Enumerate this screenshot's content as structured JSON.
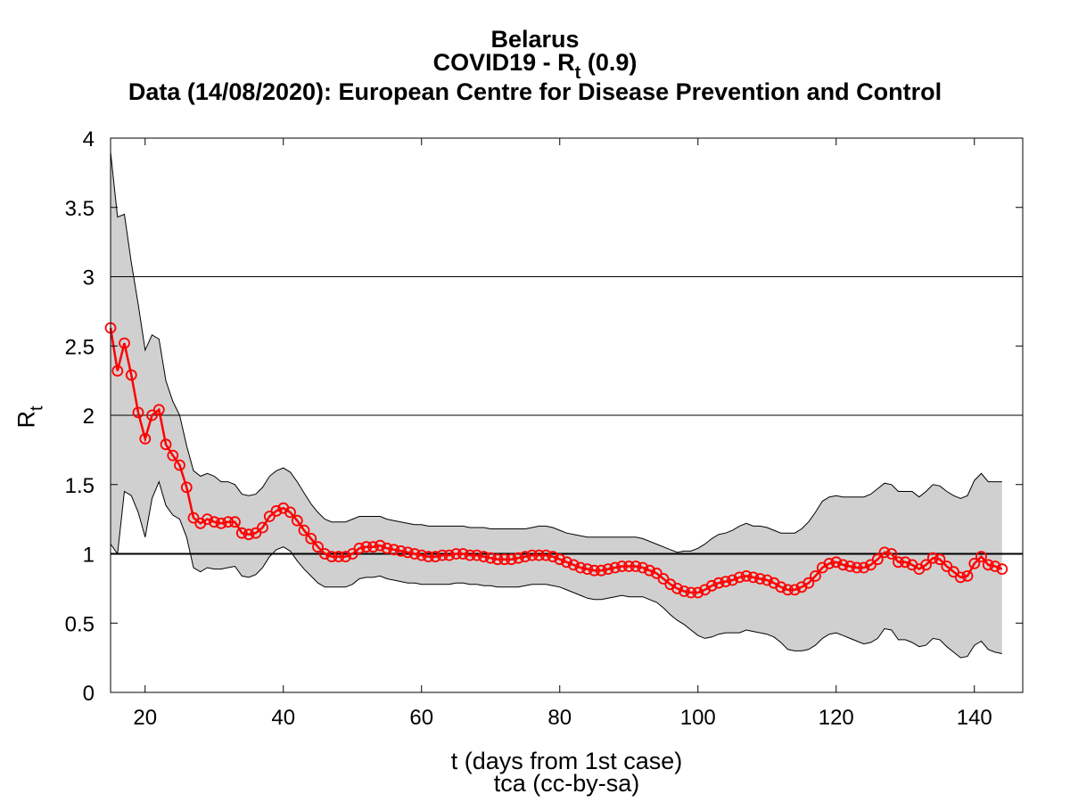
{
  "title": {
    "line1": "Belarus",
    "line2_main": "COVID19 - R",
    "line2_sub": "t",
    "line2_rest": " (0.9)",
    "line3": "Data (14/08/2020): European Centre for Disease Prevention and Control"
  },
  "xlabel": "t (days from 1st case)",
  "credit": "tca (cc-by-sa)",
  "ylabel_main": "R",
  "ylabel_sub": "t",
  "chart_data": {
    "type": "line",
    "xlim": [
      15,
      147
    ],
    "ylim": [
      0,
      4
    ],
    "xticks": [
      20,
      40,
      60,
      80,
      100,
      120,
      140
    ],
    "yticks": [
      0,
      0.5,
      1,
      1.5,
      2,
      2.5,
      3,
      3.5,
      4
    ],
    "ytick_labels": [
      "0",
      "0.5",
      "1",
      "1.5",
      "2",
      "2.5",
      "3",
      "3.5",
      "4"
    ],
    "reference_lines": [
      1,
      2,
      3
    ],
    "grid": false,
    "colors": {
      "series": "#ff0000",
      "band": "#d0d0d0",
      "band_edge": "#000000"
    },
    "series": [
      {
        "x_start": 15,
        "x_step": 1,
        "values": [
          2.63,
          2.32,
          2.52,
          2.29,
          2.02,
          1.83,
          2.0,
          2.04,
          1.79,
          1.71,
          1.64,
          1.48,
          1.26,
          1.22,
          1.25,
          1.23,
          1.22,
          1.23,
          1.23,
          1.15,
          1.14,
          1.15,
          1.19,
          1.27,
          1.31,
          1.33,
          1.3,
          1.24,
          1.17,
          1.11,
          1.05,
          1.0,
          0.98,
          0.98,
          0.98,
          1.0,
          1.04,
          1.05,
          1.05,
          1.06,
          1.04,
          1.03,
          1.02,
          1.01,
          1.0,
          0.99,
          0.98,
          0.98,
          0.99,
          0.99,
          1.0,
          1.0,
          0.99,
          0.99,
          0.98,
          0.97,
          0.96,
          0.96,
          0.96,
          0.97,
          0.98,
          0.99,
          0.99,
          0.99,
          0.98,
          0.96,
          0.94,
          0.92,
          0.9,
          0.89,
          0.88,
          0.88,
          0.89,
          0.9,
          0.91,
          0.91,
          0.91,
          0.9,
          0.88,
          0.86,
          0.82,
          0.78,
          0.75,
          0.73,
          0.72,
          0.72,
          0.74,
          0.77,
          0.79,
          0.8,
          0.81,
          0.83,
          0.84,
          0.83,
          0.82,
          0.81,
          0.79,
          0.76,
          0.74,
          0.74,
          0.76,
          0.79,
          0.84,
          0.9,
          0.93,
          0.94,
          0.92,
          0.91,
          0.9,
          0.9,
          0.92,
          0.96,
          1.01,
          1.0,
          0.94,
          0.94,
          0.92,
          0.89,
          0.92,
          0.97,
          0.96,
          0.91,
          0.87,
          0.83,
          0.84,
          0.93,
          0.98,
          0.92,
          0.91,
          0.89
        ]
      }
    ],
    "band": {
      "x_start": 15,
      "x_step": 1,
      "upper": [
        3.9,
        3.43,
        3.45,
        3.1,
        2.8,
        2.47,
        2.58,
        2.55,
        2.25,
        2.1,
        2.0,
        1.78,
        1.6,
        1.56,
        1.58,
        1.56,
        1.52,
        1.52,
        1.5,
        1.43,
        1.42,
        1.43,
        1.48,
        1.56,
        1.6,
        1.62,
        1.59,
        1.52,
        1.44,
        1.36,
        1.3,
        1.25,
        1.23,
        1.23,
        1.23,
        1.25,
        1.27,
        1.27,
        1.27,
        1.27,
        1.25,
        1.24,
        1.23,
        1.22,
        1.21,
        1.21,
        1.2,
        1.2,
        1.2,
        1.2,
        1.2,
        1.2,
        1.19,
        1.19,
        1.19,
        1.18,
        1.18,
        1.18,
        1.18,
        1.18,
        1.18,
        1.19,
        1.2,
        1.2,
        1.19,
        1.17,
        1.15,
        1.14,
        1.13,
        1.12,
        1.12,
        1.12,
        1.12,
        1.12,
        1.12,
        1.12,
        1.12,
        1.11,
        1.09,
        1.07,
        1.05,
        1.03,
        1.01,
        1.02,
        1.02,
        1.04,
        1.07,
        1.11,
        1.14,
        1.15,
        1.17,
        1.2,
        1.22,
        1.2,
        1.2,
        1.19,
        1.17,
        1.15,
        1.15,
        1.15,
        1.18,
        1.23,
        1.3,
        1.38,
        1.41,
        1.42,
        1.41,
        1.41,
        1.41,
        1.41,
        1.43,
        1.47,
        1.51,
        1.5,
        1.45,
        1.45,
        1.45,
        1.41,
        1.45,
        1.5,
        1.49,
        1.45,
        1.42,
        1.4,
        1.42,
        1.53,
        1.58,
        1.52,
        1.52,
        1.52
      ],
      "lower": [
        1.07,
        1.0,
        1.45,
        1.42,
        1.3,
        1.12,
        1.4,
        1.52,
        1.35,
        1.28,
        1.25,
        1.12,
        0.9,
        0.87,
        0.9,
        0.89,
        0.89,
        0.9,
        0.91,
        0.84,
        0.83,
        0.85,
        0.9,
        0.98,
        1.03,
        1.05,
        1.02,
        0.95,
        0.89,
        0.84,
        0.79,
        0.76,
        0.76,
        0.76,
        0.76,
        0.78,
        0.82,
        0.83,
        0.83,
        0.84,
        0.82,
        0.81,
        0.8,
        0.79,
        0.79,
        0.78,
        0.78,
        0.78,
        0.78,
        0.78,
        0.79,
        0.79,
        0.78,
        0.78,
        0.77,
        0.77,
        0.76,
        0.76,
        0.76,
        0.76,
        0.77,
        0.78,
        0.78,
        0.78,
        0.77,
        0.76,
        0.74,
        0.72,
        0.7,
        0.68,
        0.67,
        0.67,
        0.68,
        0.69,
        0.7,
        0.69,
        0.69,
        0.69,
        0.67,
        0.65,
        0.61,
        0.56,
        0.52,
        0.49,
        0.45,
        0.41,
        0.39,
        0.4,
        0.42,
        0.43,
        0.43,
        0.43,
        0.45,
        0.44,
        0.43,
        0.42,
        0.4,
        0.36,
        0.31,
        0.3,
        0.3,
        0.31,
        0.34,
        0.39,
        0.42,
        0.43,
        0.41,
        0.39,
        0.37,
        0.35,
        0.36,
        0.39,
        0.46,
        0.45,
        0.38,
        0.38,
        0.36,
        0.33,
        0.34,
        0.39,
        0.38,
        0.33,
        0.29,
        0.25,
        0.26,
        0.34,
        0.37,
        0.31,
        0.29,
        0.28
      ]
    }
  }
}
